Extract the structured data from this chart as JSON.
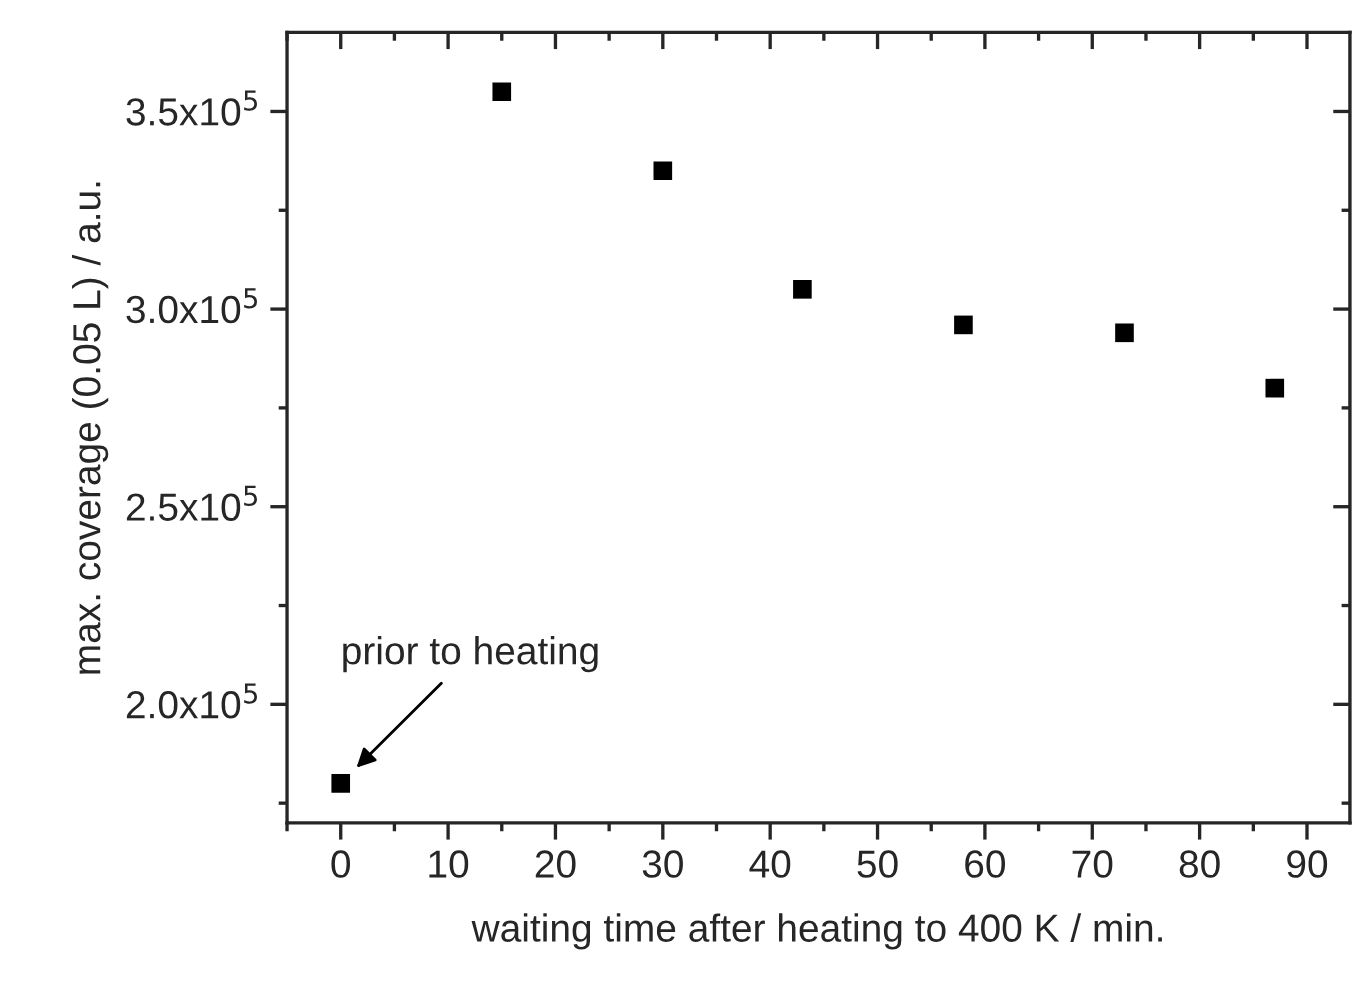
{
  "chart_data": {
    "type": "scatter",
    "xlabel": "waiting time after heating to 400 K / min.",
    "ylabel": "max. coverage (0.05 L) / a.u.",
    "x": [
      0,
      15,
      30,
      43,
      58,
      73,
      87
    ],
    "values": [
      180000,
      355000,
      335000,
      305000,
      296000,
      294000,
      280000
    ],
    "color": "#000000",
    "marker": "square",
    "xlim": [
      -5,
      94
    ],
    "xticks": [
      0,
      10,
      20,
      30,
      40,
      50,
      60,
      70,
      80,
      90
    ],
    "ylim": [
      170000,
      370000
    ],
    "yticks": [
      {
        "value": 200000,
        "label": "2.0x10$^{5}$"
      },
      {
        "value": 250000,
        "label": "2.5x10$^{5}$"
      },
      {
        "value": 300000,
        "label": "3.0x10$^{5}$"
      },
      {
        "value": 350000,
        "label": "3.5x10$^{5}$"
      }
    ],
    "annotations": [
      {
        "text": "prior to heating",
        "x": 0,
        "y": 180000
      }
    ],
    "grid": false,
    "legend": false
  }
}
